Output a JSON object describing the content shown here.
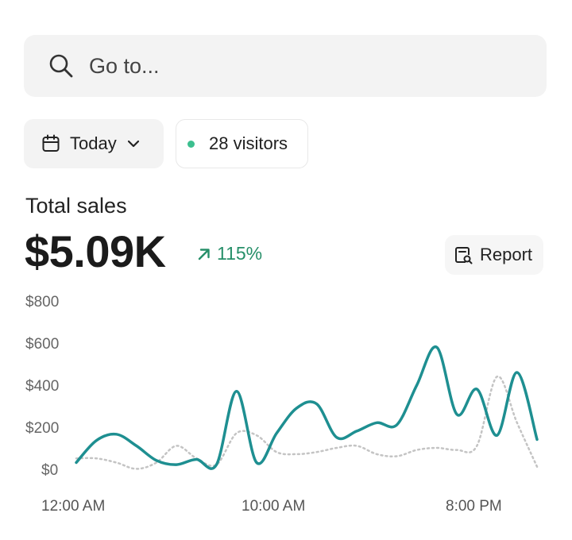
{
  "search": {
    "placeholder": "Go to..."
  },
  "filters": {
    "date_label": "Today",
    "visitors_label": "28 visitors"
  },
  "summary": {
    "title": "Total sales",
    "amount": "$5.09K",
    "change": "115%",
    "report_label": "Report"
  },
  "colors": {
    "primary_line": "#1e8f91",
    "comparison_line": "#c4c4c4",
    "positive": "#268f69",
    "live_dot": "#3cbf8f"
  },
  "icons": [
    "search-icon",
    "calendar-icon",
    "chevron-down-icon",
    "arrow-up-right-icon",
    "report-icon"
  ],
  "chart_data": {
    "type": "line",
    "x_ticks": [
      "12:00 AM",
      "10:00 AM",
      "8:00 PM"
    ],
    "y_ticks": [
      "$800",
      "$600",
      "$400",
      "$200",
      "$0"
    ],
    "ylim": [
      0,
      800
    ],
    "grid": false,
    "series": [
      {
        "style": "solid",
        "values": [
          40,
          145,
          175,
          120,
          50,
          30,
          55,
          30,
          380,
          40,
          180,
          300,
          320,
          160,
          190,
          230,
          220,
          410,
          590,
          270,
          390,
          170,
          470,
          150
        ]
      },
      {
        "style": "dotted",
        "values": [
          60,
          60,
          40,
          10,
          40,
          120,
          60,
          30,
          180,
          170,
          90,
          80,
          90,
          110,
          120,
          80,
          70,
          100,
          110,
          100,
          120,
          450,
          230,
          20
        ]
      }
    ]
  }
}
